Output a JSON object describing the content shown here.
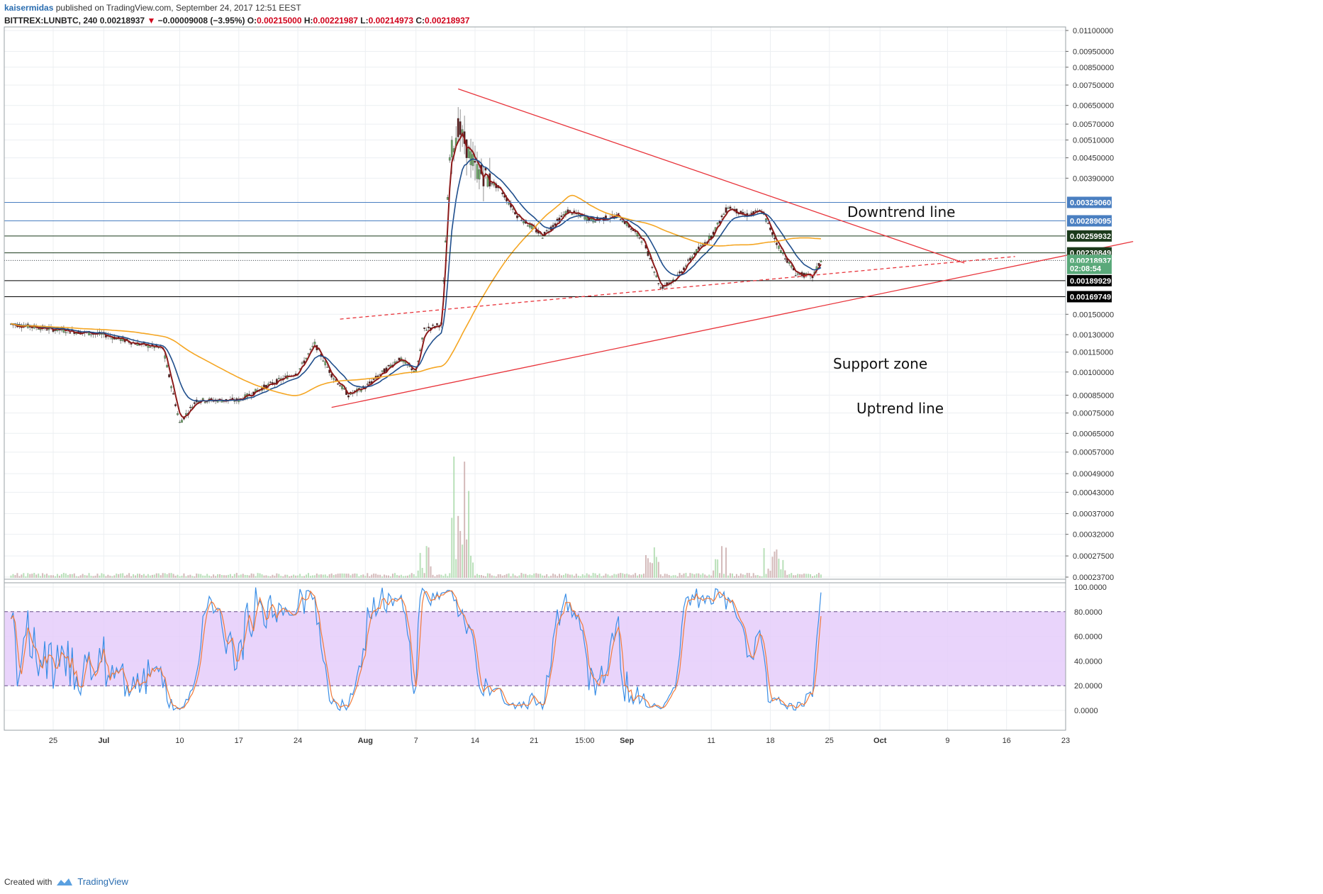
{
  "header": {
    "user": "kaisermidas",
    "published": "published on TradingView.com, September 24, 2017 12:51 EEST",
    "symbol": "BITTREX:LUNBTC, 240",
    "last": "0.00218937",
    "change_arrow": "▼",
    "change": "−0.00009008 (−3.95%)",
    "o_label": "O:",
    "o": "0.00215000",
    "h_label": "H:",
    "h": "0.00221987",
    "l_label": "L:",
    "l": "0.00214973",
    "c_label": "C:",
    "c": "0.00218937"
  },
  "footer": {
    "created_with": "Created with",
    "brand": "TradingView"
  },
  "colors": {
    "trendline": "#e8333a",
    "blue_level": "#4a7fc1",
    "dark_level": "#1b3a1b",
    "ema_fast": "#8b1a1a",
    "ema_mid": "#1f4e8c",
    "sma_slow": "#f5a623",
    "stoch_k": "#3a8ee6",
    "stoch_d": "#f07a3a",
    "stoch_band": "#e5cdfa"
  },
  "chart_data": {
    "type": "line",
    "symbol": "BITTREX:LUNBTC",
    "timeframe": "240",
    "x_ticks": [
      "25",
      "Jul",
      "10",
      "17",
      "24",
      "Aug",
      "7",
      "14",
      "21",
      "15:00",
      "Sep",
      "11",
      "18",
      "25",
      "Oct",
      "9",
      "16",
      "23"
    ],
    "y_ticks": [
      "0.01100000",
      "0.00950000",
      "0.00850000",
      "0.00750000",
      "0.00650000",
      "0.00570000",
      "0.00510000",
      "0.00450000",
      "0.00390000",
      "0.00329060",
      "0.00289095",
      "0.00259932",
      "0.00230849",
      "0.00218937",
      "0.00189929",
      "0.00169749",
      "0.00150000",
      "0.00130000",
      "0.00115000",
      "0.00100000",
      "0.00085000",
      "0.00075000",
      "0.00065000",
      "0.00057000",
      "0.00049000",
      "0.00043000",
      "0.00037000",
      "0.00032000",
      "0.00027500",
      "0.00023700"
    ],
    "y_scale": "log",
    "price_path": [
      [
        "Jun 20",
        0.0014
      ],
      [
        "Jun 25",
        0.00135
      ],
      [
        "Jul 1",
        0.0013
      ],
      [
        "Jul 5",
        0.00122
      ],
      [
        "Jul 8",
        0.00118
      ],
      [
        "Jul 10",
        0.0007
      ],
      [
        "Jul 12",
        0.00082
      ],
      [
        "Jul 17",
        0.00082
      ],
      [
        "Jul 20",
        0.0009
      ],
      [
        "Jul 24",
        0.001
      ],
      [
        "Jul 26",
        0.00122
      ],
      [
        "Jul 28",
        0.00098
      ],
      [
        "Jul 30",
        0.00085
      ],
      [
        "Aug 1",
        0.0009
      ],
      [
        "Aug 5",
        0.0011
      ],
      [
        "Aug 7",
        0.001
      ],
      [
        "Aug 8",
        0.00135
      ],
      [
        "Aug 10",
        0.0014
      ],
      [
        "Aug 11",
        0.0045
      ],
      [
        "Aug 12",
        0.0056
      ],
      [
        "Aug 14",
        0.0042
      ],
      [
        "Aug 17",
        0.0036
      ],
      [
        "Aug 19",
        0.003
      ],
      [
        "Aug 22",
        0.0026
      ],
      [
        "Aug 25",
        0.0031
      ],
      [
        "Aug 28",
        0.0029
      ],
      [
        "Aug 31",
        0.003
      ],
      [
        "Sep 3",
        0.0025
      ],
      [
        "Sep 5",
        0.0018
      ],
      [
        "Sep 7",
        0.00195
      ],
      [
        "Sep 9",
        0.0023
      ],
      [
        "Sep 11",
        0.0026
      ],
      [
        "Sep 13",
        0.0032
      ],
      [
        "Sep 15",
        0.003
      ],
      [
        "Sep 17",
        0.0031
      ],
      [
        "Sep 19",
        0.0024
      ],
      [
        "Sep 21",
        0.002
      ],
      [
        "Sep 23",
        0.00195
      ],
      [
        "Sep 24",
        0.00218937
      ]
    ],
    "price_labels": [
      {
        "value": 0.0032906,
        "text": "0.00329060",
        "color": "#4a7fc1"
      },
      {
        "value": 0.00289095,
        "text": "0.00289095",
        "color": "#4a7fc1"
      },
      {
        "value": 0.00259932,
        "text": "0.00259932",
        "color": "#1b3a1b"
      },
      {
        "value": 0.00230849,
        "text": "0.00230849",
        "color": "#1b3a1b"
      },
      {
        "value": 0.00218937,
        "text": "0.00218937",
        "color": "#5aa97a"
      },
      {
        "value": 0.00207,
        "text": "02:08:54",
        "color": "#5aa97a"
      },
      {
        "value": 0.00189929,
        "text": "0.00189929",
        "color": "#000000"
      },
      {
        "value": 0.00169749,
        "text": "0.00169749",
        "color": "#000000"
      }
    ],
    "horizontal_levels": [
      {
        "value": 0.0032906,
        "style": "blue"
      },
      {
        "value": 0.00289095,
        "style": "blue"
      },
      {
        "value": 0.00259932,
        "style": "dark"
      },
      {
        "value": 0.00230849,
        "style": "dark"
      },
      {
        "value": 0.00189929,
        "style": "black"
      },
      {
        "value": 0.00169749,
        "style": "black"
      }
    ],
    "annotations": [
      {
        "text": "Downtrend line"
      },
      {
        "text": "Support zone"
      },
      {
        "text": "Uptrend line"
      }
    ],
    "trendlines": [
      {
        "name": "downtrend",
        "from": [
          "Aug 12",
          0.0073
        ],
        "to": [
          "Oct 11",
          0.00215
        ]
      },
      {
        "name": "uptrend",
        "from": [
          "Jul 28",
          0.00078
        ],
        "to": [
          "Oct 31",
          0.0025
        ]
      },
      {
        "name": "dashed-uptrend",
        "from": [
          "Jul 29",
          0.00145
        ],
        "to": [
          "Oct 17",
          0.00225
        ],
        "dashed": true
      }
    ],
    "stochastic": {
      "y_ticks": [
        "100.0000",
        "80.0000",
        "60.0000",
        "40.0000",
        "20.0000",
        "0.0000"
      ],
      "overbought": 80,
      "oversold": 20,
      "last_k": 85
    },
    "grid": true
  }
}
